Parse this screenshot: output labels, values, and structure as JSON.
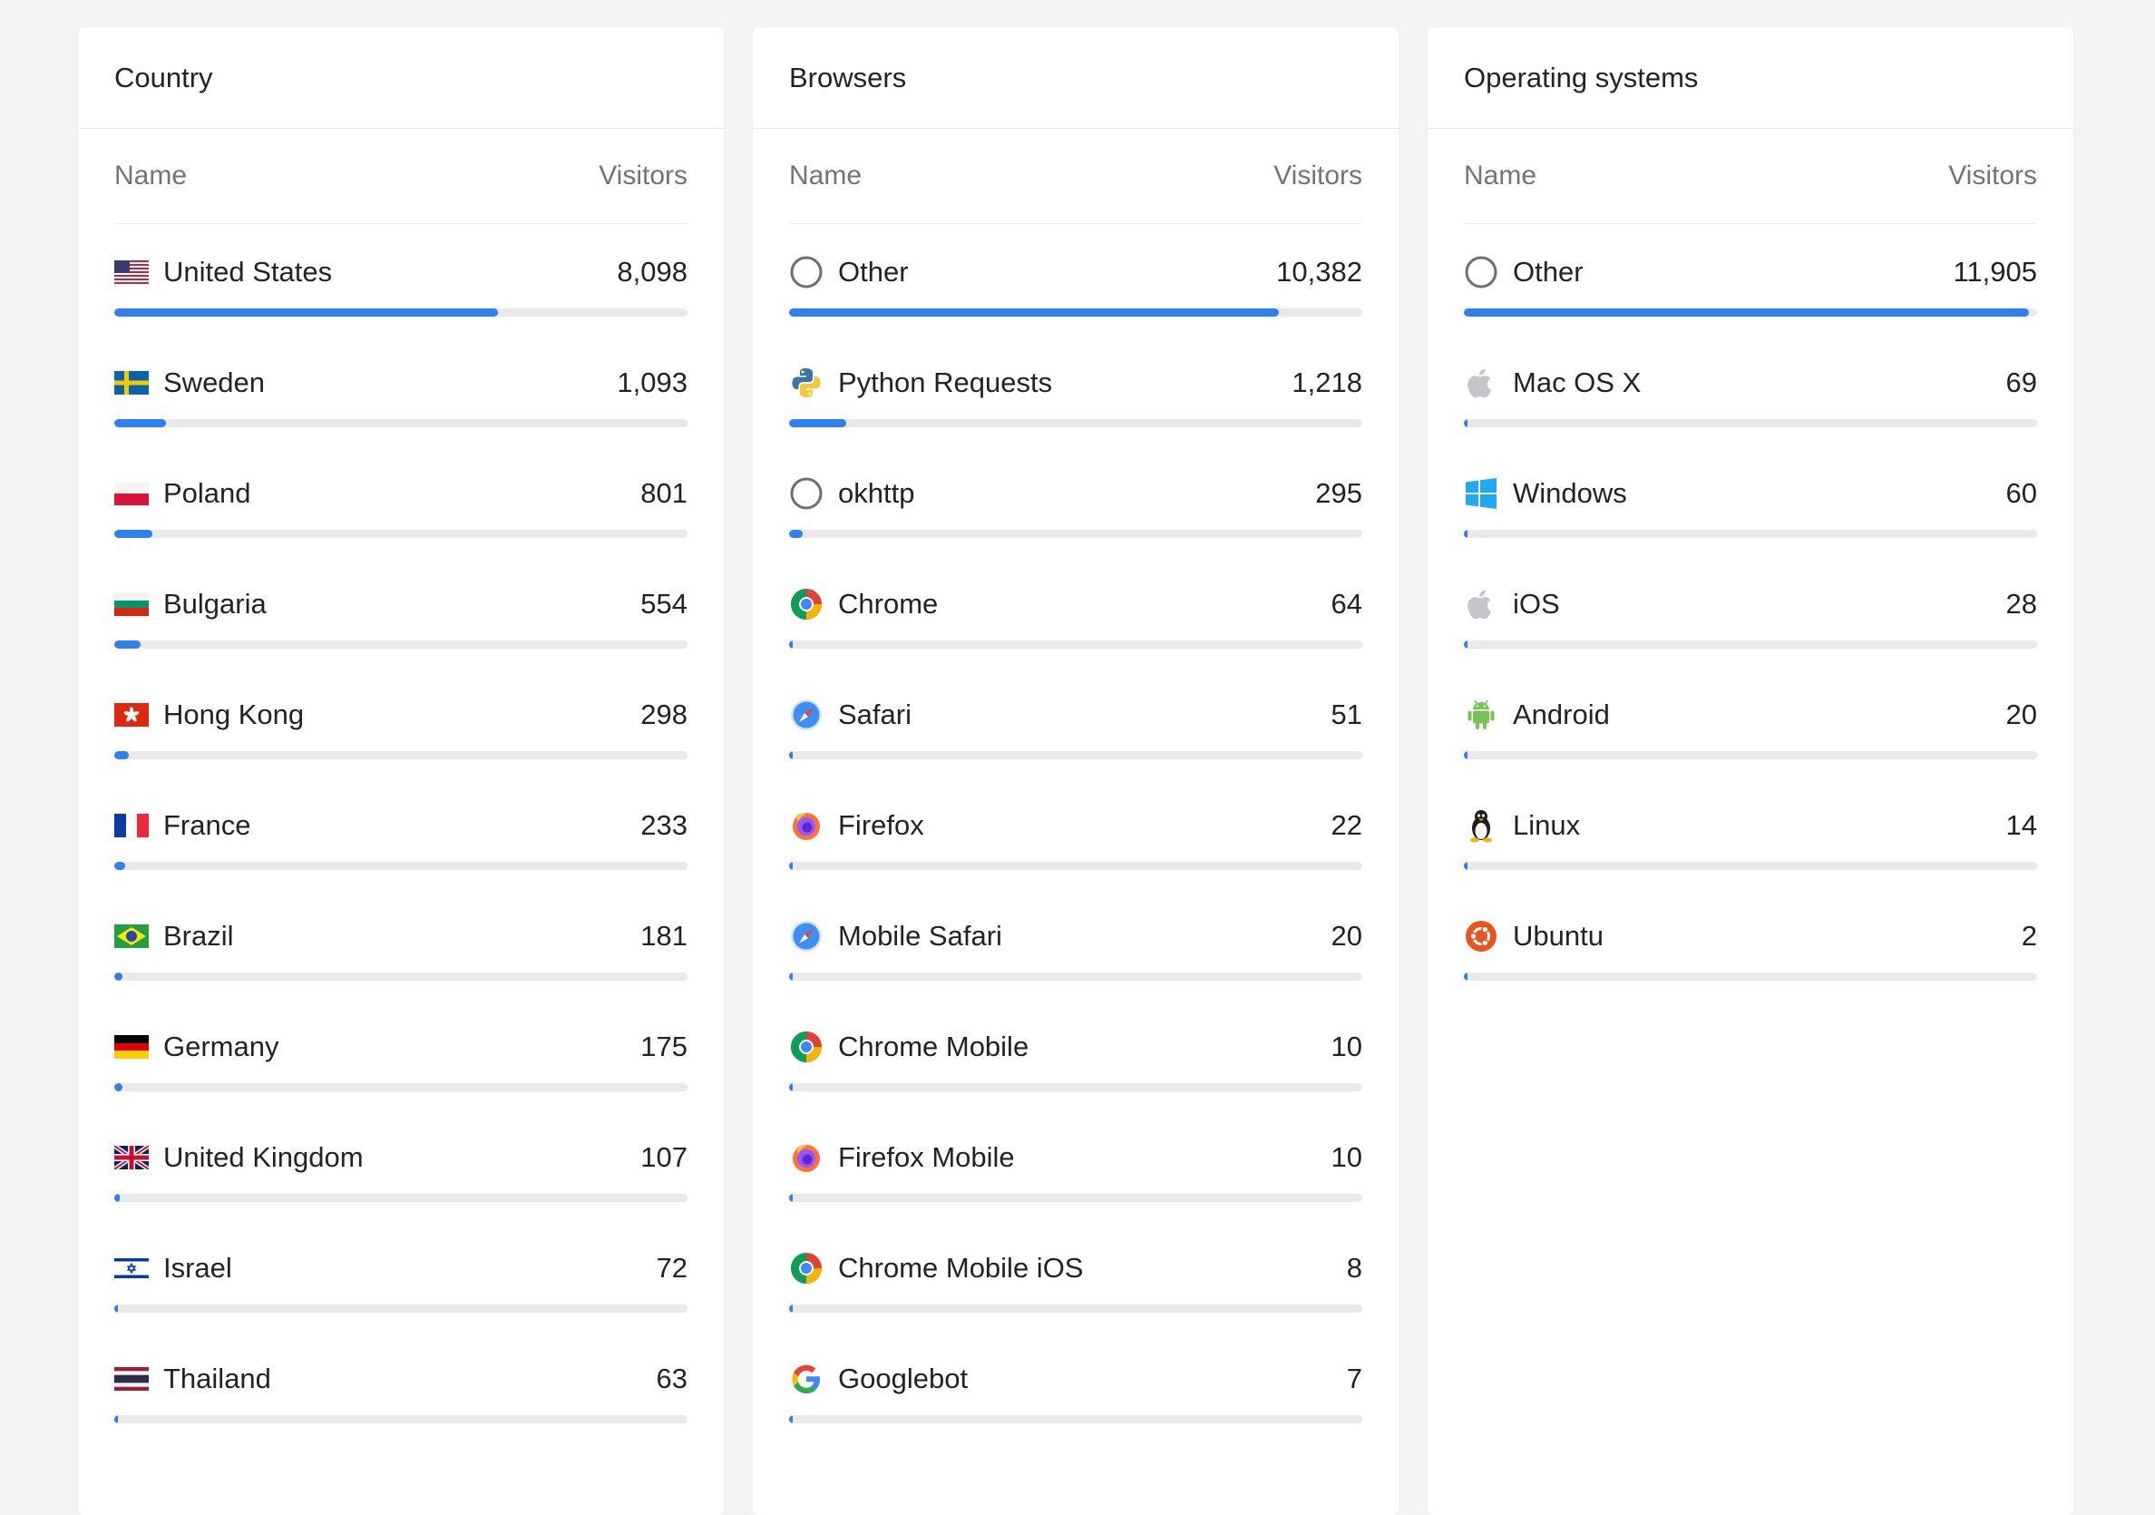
{
  "panels": [
    {
      "title": "Country",
      "col_name": "Name",
      "col_visitors": "Visitors",
      "rows": [
        {
          "name": "United States",
          "value": "8,098",
          "icon": "flag-us-icon",
          "fill": 0.67
        },
        {
          "name": "Sweden",
          "value": "1,093",
          "icon": "flag-se-icon",
          "fill": 0.09
        },
        {
          "name": "Poland",
          "value": "801",
          "icon": "flag-pl-icon",
          "fill": 0.066
        },
        {
          "name": "Bulgaria",
          "value": "554",
          "icon": "flag-bg-icon",
          "fill": 0.046
        },
        {
          "name": "Hong Kong",
          "value": "298",
          "icon": "flag-hk-icon",
          "fill": 0.025
        },
        {
          "name": "France",
          "value": "233",
          "icon": "flag-fr-icon",
          "fill": 0.019
        },
        {
          "name": "Brazil",
          "value": "181",
          "icon": "flag-br-icon",
          "fill": 0.015
        },
        {
          "name": "Germany",
          "value": "175",
          "icon": "flag-de-icon",
          "fill": 0.014
        },
        {
          "name": "United Kingdom",
          "value": "107",
          "icon": "flag-gb-icon",
          "fill": 0.009
        },
        {
          "name": "Israel",
          "value": "72",
          "icon": "flag-il-icon",
          "fill": 0.006
        },
        {
          "name": "Thailand",
          "value": "63",
          "icon": "flag-th-icon",
          "fill": 0.005
        }
      ]
    },
    {
      "title": "Browsers",
      "col_name": "Name",
      "col_visitors": "Visitors",
      "rows": [
        {
          "name": "Other",
          "value": "10,382",
          "icon": "circle-outline-icon",
          "fill": 0.855
        },
        {
          "name": "Python Requests",
          "value": "1,218",
          "icon": "python-icon",
          "fill": 0.1
        },
        {
          "name": "okhttp",
          "value": "295",
          "icon": "circle-outline-icon",
          "fill": 0.024
        },
        {
          "name": "Chrome",
          "value": "64",
          "icon": "chrome-icon",
          "fill": 0.005
        },
        {
          "name": "Safari",
          "value": "51",
          "icon": "safari-icon",
          "fill": 0.004
        },
        {
          "name": "Firefox",
          "value": "22",
          "icon": "firefox-icon",
          "fill": 0.002
        },
        {
          "name": "Mobile Safari",
          "value": "20",
          "icon": "safari-icon",
          "fill": 0.002
        },
        {
          "name": "Chrome Mobile",
          "value": "10",
          "icon": "chrome-icon",
          "fill": 0.001
        },
        {
          "name": "Firefox Mobile",
          "value": "10",
          "icon": "firefox-icon",
          "fill": 0.001
        },
        {
          "name": "Chrome Mobile iOS",
          "value": "8",
          "icon": "chrome-icon",
          "fill": 0.001
        },
        {
          "name": "Googlebot",
          "value": "7",
          "icon": "google-icon",
          "fill": 0.001
        }
      ]
    },
    {
      "title": "Operating systems",
      "col_name": "Name",
      "col_visitors": "Visitors",
      "rows": [
        {
          "name": "Other",
          "value": "11,905",
          "icon": "circle-outline-icon",
          "fill": 0.985
        },
        {
          "name": "Mac OS X",
          "value": "69",
          "icon": "apple-icon",
          "fill": 0.006
        },
        {
          "name": "Windows",
          "value": "60",
          "icon": "windows-icon",
          "fill": 0.005
        },
        {
          "name": "iOS",
          "value": "28",
          "icon": "apple-icon",
          "fill": 0.002
        },
        {
          "name": "Android",
          "value": "20",
          "icon": "android-icon",
          "fill": 0.002
        },
        {
          "name": "Linux",
          "value": "14",
          "icon": "linux-icon",
          "fill": 0.001
        },
        {
          "name": "Ubuntu",
          "value": "2",
          "icon": "ubuntu-icon",
          "fill": 0.001
        }
      ]
    }
  ],
  "colors": {
    "bar_fill": "#2f7ff0",
    "bar_track": "#e9e9ec",
    "background": "#f3f3f4",
    "card": "#ffffff"
  }
}
